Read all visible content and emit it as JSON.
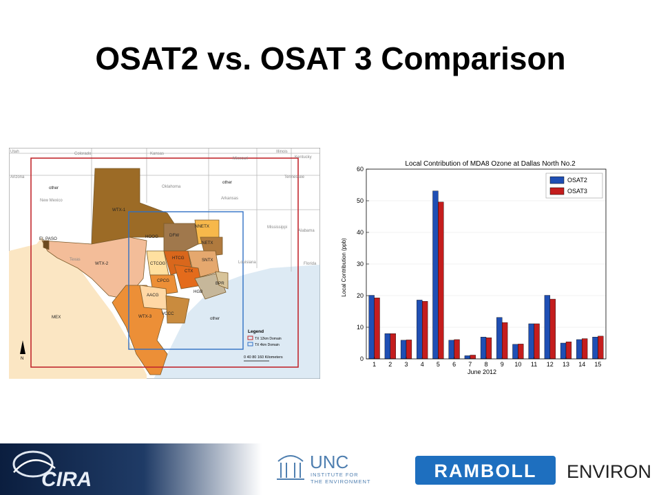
{
  "slide": {
    "title": "OSAT2 vs. OSAT 3 Comparison"
  },
  "colors": {
    "osat2": "#1f4fb4",
    "osat3": "#c41d1d",
    "map_water": "#9ec4df",
    "mexico": "#fbe6c3",
    "domain_12km": "#c1272d",
    "domain_4km": "#2f6fc4",
    "ramboll_blue": "#1e6fbf"
  },
  "map": {
    "state_labels": [
      "Utah",
      "Colorado",
      "Kansas",
      "Missouri",
      "Illinois",
      "Kentucky",
      "Arizona",
      "Oklahoma",
      "Tennessee",
      "New Mexico",
      "Arkansas",
      "Mississippi",
      "Alabama",
      "Louisiana",
      "Florida",
      "Texas"
    ],
    "region_labels": [
      "other",
      "other",
      "other",
      "WTX-1",
      "WTX-2",
      "WTX-3",
      "NNETX",
      "NETX",
      "DFW",
      "HOOG",
      "CTCOG",
      "HTCG",
      "SNTX",
      "CPCG",
      "CTX",
      "BPR",
      "HGB",
      "AACG",
      "VCCC",
      "EL PASO",
      "MEX"
    ],
    "legend": {
      "title": "Legend",
      "items": [
        {
          "label": "TX 12km Domain",
          "color": "#c1272d"
        },
        {
          "label": "TX 4km Domain",
          "color": "#2f6fc4"
        }
      ]
    },
    "scale_bar": "0  40 80      160 Kilometers",
    "north_label": "N"
  },
  "chart_data": {
    "type": "bar",
    "title": "Local Contribution of MDA8 Ozone at Dallas North No.2",
    "xlabel": "June 2012",
    "ylabel": "Local Contribution (ppb)",
    "categories": [
      "1",
      "2",
      "3",
      "4",
      "5",
      "6",
      "7",
      "8",
      "9",
      "10",
      "11",
      "12",
      "13",
      "14",
      "15"
    ],
    "ylim": [
      0,
      60
    ],
    "yticks": [
      "0",
      "10",
      "20",
      "30",
      "40",
      "50",
      "60"
    ],
    "legend_position": "top-right",
    "series": [
      {
        "name": "OSAT2",
        "color": "#1f4fb4",
        "values": [
          20.1,
          8.0,
          5.9,
          18.6,
          53.1,
          5.9,
          1.0,
          6.9,
          13.1,
          4.6,
          11.1,
          20.1,
          5.0,
          6.1,
          6.9
        ]
      },
      {
        "name": "OSAT3",
        "color": "#c41d1d",
        "values": [
          19.3,
          8.0,
          6.0,
          18.2,
          49.6,
          6.1,
          1.2,
          6.7,
          11.5,
          4.7,
          11.1,
          18.9,
          5.4,
          6.4,
          7.2
        ]
      }
    ]
  },
  "footer": {
    "cira_logo": "CIRA",
    "unc_logo": {
      "name": "UNC",
      "line1": "INSTITUTE FOR",
      "line2": "THE ENVIRONMENT"
    },
    "ramboll_logo": "RAMBOLL",
    "environ_text": "ENVIRON"
  }
}
